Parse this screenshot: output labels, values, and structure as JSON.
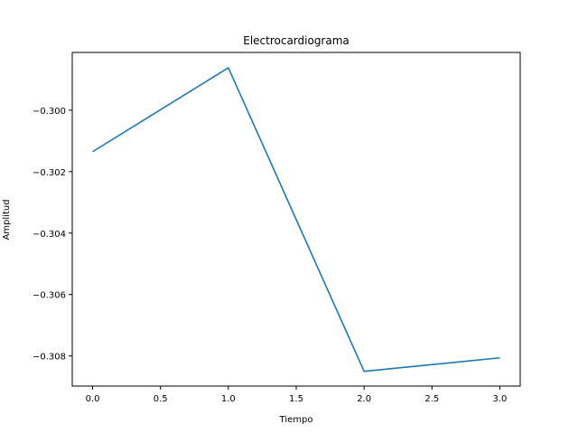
{
  "chart_data": {
    "type": "line",
    "title": "Electrocardiograma",
    "xlabel": "Tiempo",
    "ylabel": "Amplitud",
    "xlim": [
      -0.15,
      3.15
    ],
    "ylim": [
      -0.30898,
      -0.29812
    ],
    "xticks": [
      0.0,
      0.5,
      1.0,
      1.5,
      2.0,
      2.5,
      3.0
    ],
    "xtick_labels": [
      "0.0",
      "0.5",
      "1.0",
      "1.5",
      "2.0",
      "2.5",
      "3.0"
    ],
    "yticks": [
      -0.3,
      -0.302,
      -0.304,
      -0.306,
      -0.308
    ],
    "ytick_labels": [
      "−0.300",
      "−0.302",
      "−0.304",
      "−0.306",
      "−0.308"
    ],
    "grid": false,
    "series": [
      {
        "color": "#1f77b4",
        "x": [
          0,
          1,
          2,
          3
        ],
        "y": [
          -0.30135,
          -0.29862,
          -0.3085,
          -0.30806
        ]
      }
    ]
  }
}
